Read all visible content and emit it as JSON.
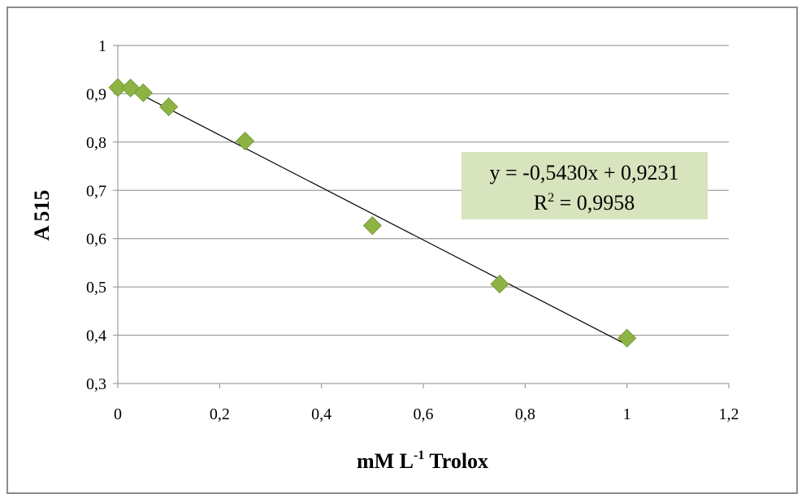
{
  "chart_data": {
    "type": "scatter",
    "title": "",
    "xlabel": "mM L",
    "xlabel_sup": "-1",
    "xlabel_suffix": " Trolox",
    "ylabel": "A 515",
    "xlim": [
      0,
      1.2
    ],
    "ylim": [
      0.3,
      1
    ],
    "x_ticks": [
      0,
      0.2,
      0.4,
      0.6,
      0.8,
      1,
      1.2
    ],
    "x_tick_labels": [
      "0",
      "0,2",
      "0,4",
      "0,6",
      "0,8",
      "1",
      "1,2"
    ],
    "y_ticks": [
      0.3,
      0.4,
      0.5,
      0.6,
      0.7,
      0.8,
      0.9,
      1
    ],
    "y_tick_labels": [
      "0,3",
      "0,4",
      "0,5",
      "0,6",
      "0,7",
      "0,8",
      "0,9",
      "1"
    ],
    "grid": "horizontal",
    "series": [
      {
        "x": [
          0,
          0.025,
          0.05,
          0.1,
          0.25,
          0.5,
          0.75,
          1
        ],
        "y": [
          0.913,
          0.912,
          0.902,
          0.873,
          0.802,
          0.627,
          0.506,
          0.394
        ],
        "marker": "diamond",
        "color": "#8db344"
      }
    ],
    "trendline": {
      "slope": -0.543,
      "intercept": 0.9231,
      "x_range": [
        0,
        1
      ],
      "color": "#000000",
      "equation_label": "y = -0,5430x + 0,9231",
      "r2_label_prefix": "R",
      "r2_label_sup": "2",
      "r2_label_value": " = 0,9958",
      "label_background": "#d7e4bd"
    }
  }
}
